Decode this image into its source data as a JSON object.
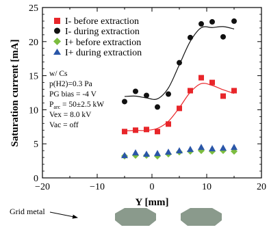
{
  "chart_data": {
    "type": "scatter",
    "xlabel": "Y [mm]",
    "ylabel": "Saturation current [mA]",
    "xlim": [
      -20,
      20
    ],
    "ylim": [
      0,
      25
    ],
    "x_ticks": [
      -20,
      -10,
      0,
      10,
      20
    ],
    "y_ticks": [
      0,
      5,
      10,
      15,
      20,
      25
    ],
    "grid": false,
    "legend_position": "top-left",
    "series": [
      {
        "name": "I- before extraction",
        "marker": "square",
        "color": "#e8262a",
        "x": [
          -5,
          -3,
          -1,
          1,
          3,
          5,
          7,
          9,
          11,
          13,
          15
        ],
        "y": [
          6.8,
          7.0,
          7.1,
          6.8,
          7.9,
          10.2,
          12.8,
          14.7,
          14.0,
          12.0,
          12.8
        ],
        "fit_curve": true
      },
      {
        "name": "I- during extraction",
        "marker": "circle",
        "color": "#111111",
        "x": [
          -5,
          -3,
          -1,
          1,
          3,
          5,
          7,
          9,
          11,
          13,
          15
        ],
        "y": [
          11.2,
          12.7,
          12.1,
          10.4,
          12.3,
          16.9,
          20.6,
          22.6,
          22.9,
          20.7,
          23.0
        ],
        "fit_curve": true
      },
      {
        "name": "I+ before extraction",
        "marker": "diamond",
        "color": "#7cbd3f",
        "x": [
          -5,
          -3,
          -1,
          1,
          3,
          5,
          7,
          9,
          11,
          13,
          15
        ],
        "y": [
          3.2,
          3.3,
          3.3,
          3.2,
          3.5,
          3.8,
          3.9,
          4.0,
          3.9,
          4.0,
          3.9
        ]
      },
      {
        "name": "I+ during extraction",
        "marker": "triangle",
        "color": "#2a56a8",
        "x": [
          -5,
          -3,
          -1,
          1,
          3,
          5,
          7,
          9,
          11,
          13,
          15
        ],
        "y": [
          3.3,
          3.7,
          3.5,
          3.6,
          3.8,
          4.0,
          4.2,
          4.5,
          4.3,
          4.4,
          4.5
        ]
      }
    ],
    "conditions": {
      "line1": "w/ Cs",
      "line2": "p(H2)=0.3 Pa",
      "line3": "PG bias = -4 V",
      "parc_symbol": "P",
      "parc_sub": "arc",
      "parc_value": " = 50±2.5 kW",
      "line5": "Vex = 8.0 kV",
      "line6": "Vac = off"
    },
    "grid_metal_label": "Grid metal",
    "grid_metal_positions": [
      -3,
      9
    ]
  }
}
